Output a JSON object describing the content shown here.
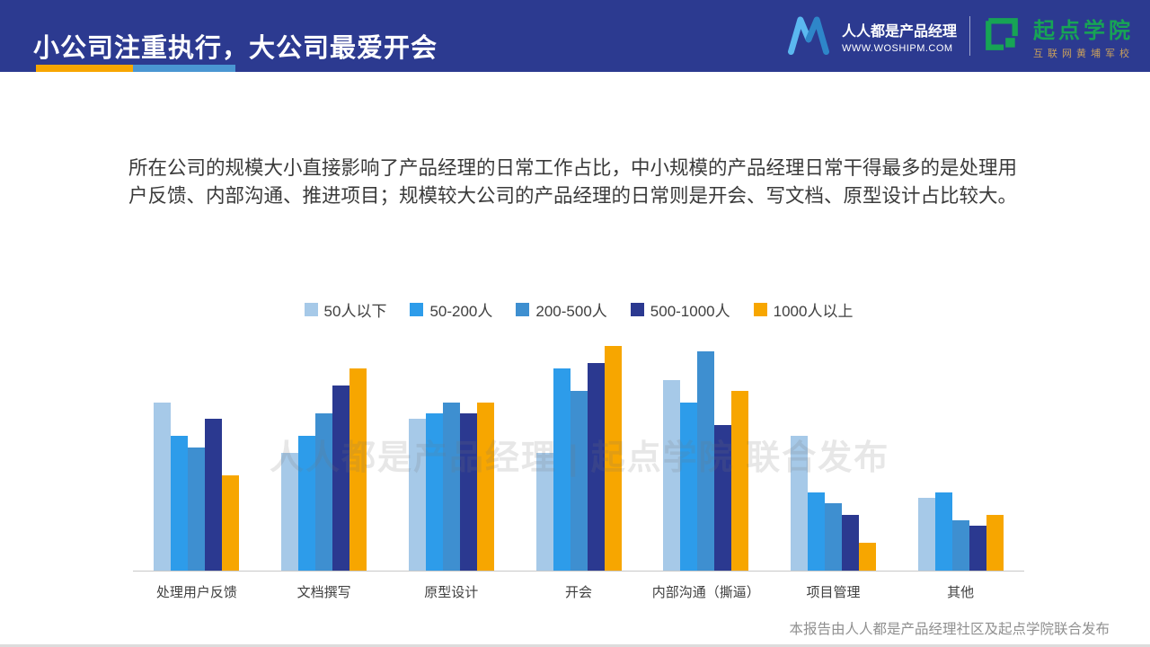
{
  "header": {
    "title": "小公司注重执行，大公司最爱开会",
    "brand_left": {
      "name": "人人都是产品经理",
      "url": "WWW.WOSHIPM.COM"
    },
    "brand_right": {
      "name": "起点学院",
      "subtitle": "互联网黄埔军校"
    }
  },
  "body": {
    "paragraph": "所在公司的规模大小直接影响了产品经理的日常工作占比，中小规模的产品经理日常干得最多的是处理用户反馈、内部沟通、推进项目；规模较大公司的产品经理的日常则是开会、写文档、原型设计占比较大。"
  },
  "chart_data": {
    "type": "bar",
    "title": "",
    "xlabel": "",
    "ylabel": "",
    "ylim": [
      0,
      20
    ],
    "grid": false,
    "legend_position": "top",
    "categories": [
      "处理用户反馈",
      "文档撰写",
      "原型设计",
      "开会",
      "内部沟通（撕逼）",
      "项目管理",
      "其他"
    ],
    "series": [
      {
        "name": "50人以下",
        "color": "#a6c9e8",
        "values": [
          15,
          10.5,
          13.5,
          10.5,
          17,
          12,
          6.5
        ]
      },
      {
        "name": "50-200人",
        "color": "#2d9cea",
        "values": [
          12,
          12,
          14,
          18,
          15,
          7,
          7
        ]
      },
      {
        "name": "200-500人",
        "color": "#3e8fd0",
        "values": [
          11,
          14,
          15,
          16,
          19.5,
          6,
          4.5
        ]
      },
      {
        "name": "500-1000人",
        "color": "#2b3990",
        "values": [
          13.5,
          16.5,
          14,
          18.5,
          13,
          5,
          4
        ]
      },
      {
        "name": "1000人以上",
        "color": "#f7a600",
        "values": [
          8.5,
          18,
          15,
          20,
          16,
          2.5,
          5
        ]
      }
    ]
  },
  "watermark": "人人都是产品经理 | 起点学院  联合发布",
  "footer": {
    "note": "本报告由人人都是产品经理社区及起点学院联合发布"
  }
}
